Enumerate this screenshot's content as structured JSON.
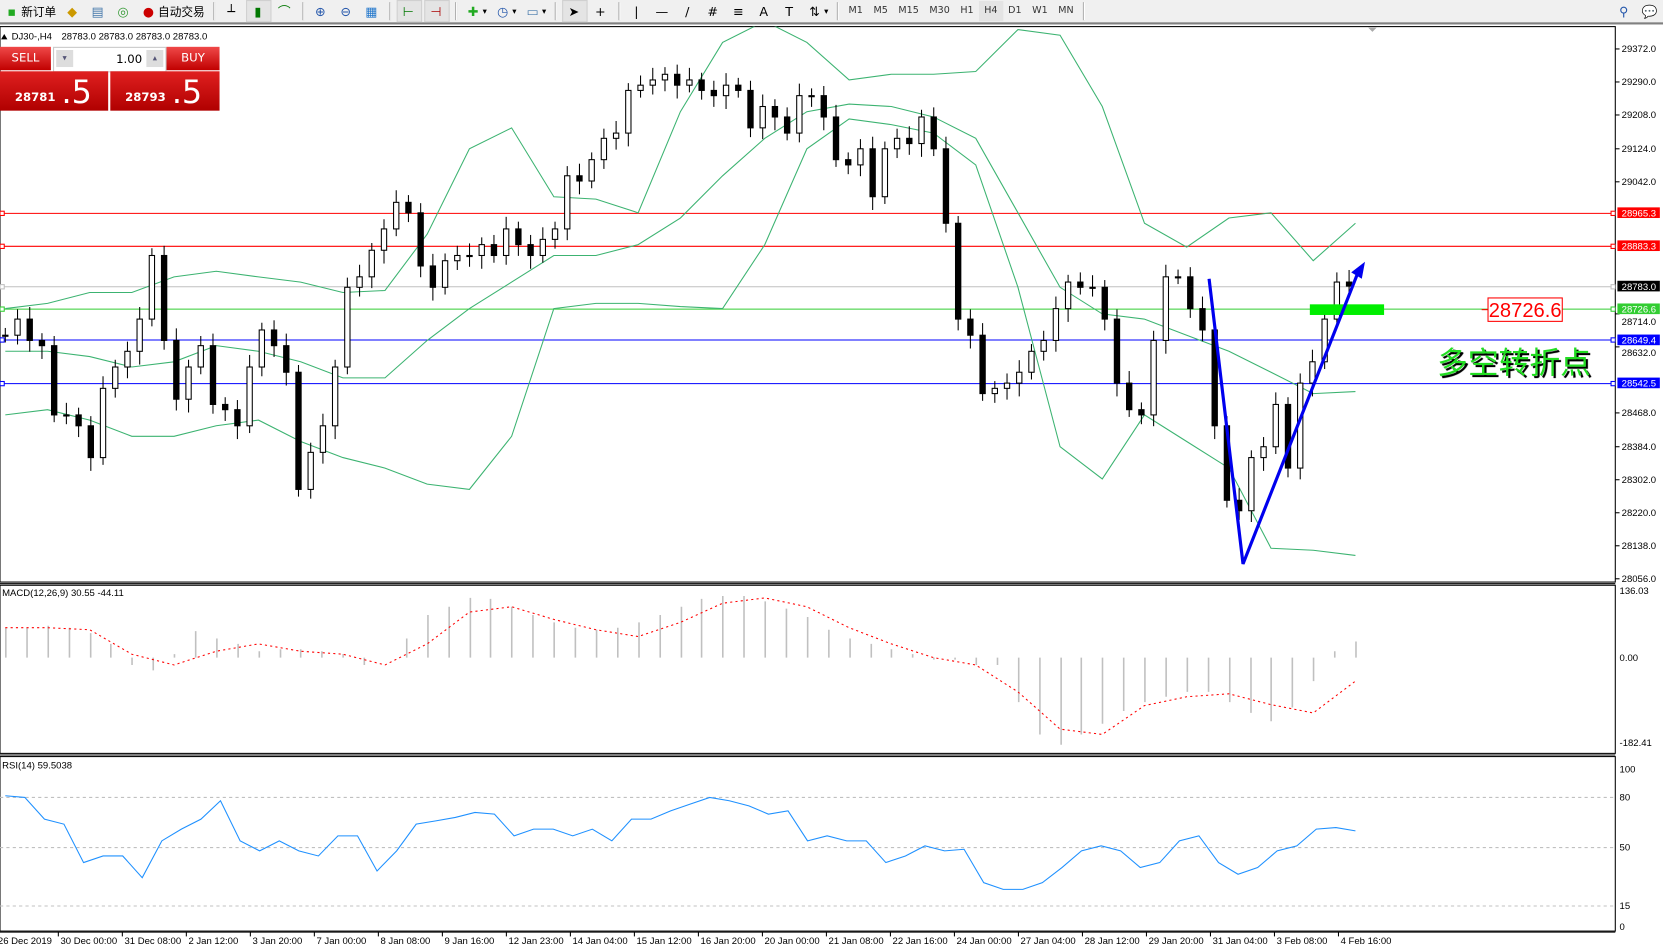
{
  "toolbar": {
    "new_order": "新订单",
    "auto_trading": "自动交易",
    "timeframes": [
      "M1",
      "M5",
      "M15",
      "M30",
      "H1",
      "H4",
      "D1",
      "W1",
      "MN"
    ],
    "selected_timeframe": "H4"
  },
  "chart_header": {
    "symbol": "DJ30-,H4",
    "ohlc": "28783.0 28783.0 28783.0 28783.0"
  },
  "trade_panel": {
    "sell_label": "SELL",
    "buy_label": "BUY",
    "lot": "1.00",
    "sell_price_main": "28781",
    "sell_price_frac": ".5",
    "buy_price_main": "28793",
    "buy_price_frac": ".5"
  },
  "colors": {
    "resistance": "#ff0000",
    "support": "#0000ff",
    "pivot": "#32cd32",
    "bands": "#3cb371",
    "rsi": "#1e90ff",
    "macd_signal": "#ff0000"
  },
  "price_axis": [
    "29372.0",
    "29290.0",
    "29208.0",
    "29124.0",
    "29042.0",
    "28714.0",
    "28632.0",
    "28468.0",
    "28384.0",
    "28302.0",
    "28220.0",
    "28138.0",
    "28056.0"
  ],
  "levels": [
    {
      "label": "28965.3",
      "value": 28965.3,
      "color": "#ff0000"
    },
    {
      "label": "28883.3",
      "value": 28883.3,
      "color": "#ff0000"
    },
    {
      "label": "28783.0",
      "value": 28783.0,
      "color": "#000000"
    },
    {
      "label": "28726.6",
      "value": 28726.6,
      "color": "#32cd32"
    },
    {
      "label": "28649.4",
      "value": 28649.4,
      "color": "#0000ff"
    },
    {
      "label": "28542.5",
      "value": 28542.5,
      "color": "#0000ff"
    }
  ],
  "annotation": {
    "price_label": "28726.6",
    "text": "多空转折点"
  },
  "closes": [
    28661,
    28701,
    28648,
    28635,
    28463,
    28463,
    28436,
    28357,
    28529,
    28582,
    28621,
    28701,
    28859,
    28648,
    28502,
    28582,
    28635,
    28489,
    28476,
    28436,
    28582,
    28674,
    28635,
    28569,
    28278,
    28370,
    28436,
    28582,
    28780,
    28806,
    28872,
    28925,
    28991,
    28965,
    28833,
    28780,
    28846,
    28859,
    28859,
    28886,
    28859,
    28925,
    28886,
    28859,
    28899,
    28925,
    29057,
    29044,
    29097,
    29150,
    29163,
    29269,
    29282,
    29295,
    29309,
    29282,
    29295,
    29269,
    29256,
    29282,
    29269,
    29176,
    29229,
    29203,
    29163,
    29256,
    29256,
    29203,
    29097,
    29084,
    29124,
    29005,
    29124,
    29150,
    29137,
    29203,
    29124,
    28939,
    28701,
    28661,
    28516,
    28529,
    28542,
    28569,
    28621,
    28648,
    28727,
    28793,
    28780,
    28780,
    28701,
    28542,
    28476,
    28463,
    28648,
    28806,
    28806,
    28727,
    28674,
    28436,
    28251,
    28225,
    28357,
    28384,
    28489,
    28331,
    28542,
    28595,
    28701,
    28793,
    28783
  ],
  "bollinger": {
    "upper": [
      28727,
      28740,
      28767,
      28767,
      28806,
      28820,
      28806,
      28793,
      28767,
      28772,
      28912,
      29124,
      29176,
      29005,
      28999,
      28965,
      29216,
      29388,
      29441,
      29388,
      29295,
      29309,
      29309,
      29316,
      29420,
      29406,
      29229,
      28939,
      28880,
      28952,
      28965,
      28846,
      28939
    ],
    "middle": [
      28621,
      28621,
      28608,
      28582,
      28595,
      28635,
      28621,
      28595,
      28555,
      28555,
      28648,
      28727,
      28793,
      28859,
      28859,
      28886,
      28952,
      29057,
      29150,
      29216,
      29235,
      29229,
      29203,
      29150,
      28965,
      28780,
      28714,
      28701,
      28661,
      28621,
      28569,
      28516,
      28521
    ],
    "lower": [
      28463,
      28476,
      28450,
      28410,
      28410,
      28436,
      28450,
      28397,
      28357,
      28331,
      28291,
      28278,
      28410,
      28727,
      28740,
      28740,
      28732,
      28727,
      28886,
      29124,
      29198,
      29184,
      29163,
      29084,
      28780,
      28384,
      28304,
      28463,
      28397,
      28331,
      28132,
      28127,
      28114
    ]
  },
  "macd": {
    "label": "MACD(12,26,9) 30.55 -44.11",
    "axis": [
      "136.03",
      "0.00",
      "-182.41"
    ],
    "histogram": [
      61,
      61,
      65,
      61,
      50,
      28,
      -15,
      -26,
      7,
      54,
      39,
      28,
      13,
      17,
      17,
      13,
      7,
      -15,
      0,
      39,
      87,
      104,
      122,
      120,
      104,
      87,
      72,
      61,
      57,
      61,
      72,
      87,
      104,
      120,
      126,
      126,
      115,
      100,
      83,
      57,
      39,
      28,
      17,
      7,
      -4,
      -4,
      -15,
      -15,
      -91,
      -157,
      -178,
      -157,
      -135,
      -109,
      -91,
      -80,
      -70,
      -70,
      -91,
      -113,
      -130,
      -102,
      -48,
      13,
      33
    ],
    "signal": [
      61,
      61,
      57,
      7,
      -15,
      13,
      28,
      13,
      7,
      -15,
      28,
      93,
      104,
      78,
      57,
      43,
      72,
      111,
      122,
      104,
      61,
      28,
      0,
      -15,
      -70,
      -146,
      -157,
      -98,
      -80,
      -74,
      -96,
      -113,
      -48
    ]
  },
  "rsi": {
    "label": "RSI(14) 59.5038",
    "axis": [
      "100",
      "80",
      "50",
      "15",
      "0"
    ],
    "values": [
      81,
      80,
      67,
      64,
      41,
      45,
      45,
      32,
      54,
      61,
      67,
      78,
      54,
      48,
      54,
      48,
      45,
      57,
      57,
      36,
      48,
      64,
      66,
      68,
      71,
      70,
      57,
      61,
      61,
      57,
      61,
      54,
      67,
      67,
      72,
      76,
      80,
      78,
      75,
      70,
      72,
      54,
      57,
      54,
      54,
      41,
      45,
      51,
      48,
      49,
      29,
      25,
      25,
      29,
      38,
      48,
      51,
      48,
      38,
      41,
      54,
      57,
      41,
      34,
      38,
      48,
      51,
      61,
      62,
      60
    ]
  },
  "time_axis": [
    "26 Dec 2019",
    "30 Dec 00:00",
    "31 Dec 08:00",
    "2 Jan 12:00",
    "3 Jan 20:00",
    "7 Jan 00:00",
    "8 Jan 08:00",
    "9 Jan 16:00",
    "12 Jan 23:00",
    "14 Jan 04:00",
    "15 Jan 12:00",
    "16 Jan 20:00",
    "20 Jan 00:00",
    "21 Jan 08:00",
    "22 Jan 16:00",
    "24 Jan 00:00",
    "27 Jan 04:00",
    "28 Jan 12:00",
    "29 Jan 20:00",
    "31 Jan 04:00",
    "3 Feb 08:00",
    "4 Feb 16:00"
  ]
}
